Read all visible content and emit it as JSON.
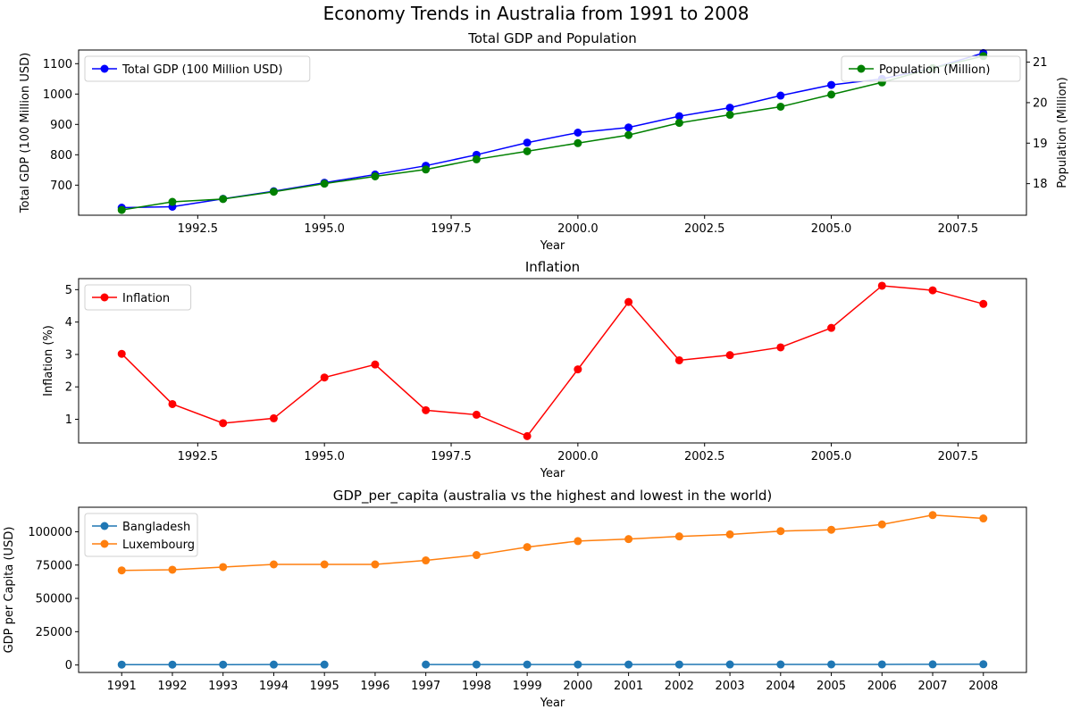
{
  "suptitle": "Economy Trends in Australia from 1991 to 2008",
  "chart_data": [
    {
      "type": "line",
      "title": "Total GDP and Population",
      "xlabel": "Year",
      "xlim": [
        1990.15,
        2008.85
      ],
      "x_ticks": [
        "1992.5",
        "1995.0",
        "1997.5",
        "2000.0",
        "2002.5",
        "2005.0",
        "2007.5"
      ],
      "x_tick_values": [
        1992.5,
        1995.0,
        1997.5,
        2000.0,
        2002.5,
        2005.0,
        2007.5
      ],
      "x": [
        1991,
        1992,
        1993,
        1994,
        1995,
        1996,
        1997,
        1998,
        1999,
        2000,
        2001,
        2002,
        2003,
        2004,
        2005,
        2006,
        2007,
        2008
      ],
      "left_axis": {
        "label": "Total GDP (100 Million USD)",
        "color": "#0000ff",
        "ylim": [
          601,
          1145
        ],
        "ticks": [
          700,
          800,
          900,
          1000,
          1100
        ],
        "tick_labels": [
          "700",
          "800",
          "900",
          "1000",
          "1100"
        ]
      },
      "right_axis": {
        "label": "Population (Million)",
        "color": "#008000",
        "ylim": [
          17.22,
          21.3
        ],
        "ticks": [
          18,
          19,
          20,
          21
        ],
        "tick_labels": [
          "18",
          "19",
          "20",
          "21"
        ]
      },
      "legend_left": "upper-left",
      "legend_right": "upper-right",
      "series": [
        {
          "name": "Total GDP (100 Million USD)",
          "color": "#0000ff",
          "axis": "left",
          "values": [
            626,
            629,
            655,
            680,
            708,
            735,
            764,
            800,
            840,
            873,
            890,
            927,
            955,
            995,
            1030,
            1050,
            1085,
            1135
          ]
        },
        {
          "name": "Population (Million)",
          "color": "#008000",
          "axis": "right",
          "values": [
            17.35,
            17.55,
            17.62,
            17.8,
            18.0,
            18.18,
            18.35,
            18.6,
            18.8,
            19.0,
            19.2,
            19.5,
            19.7,
            19.9,
            20.2,
            20.5,
            20.85,
            21.15
          ]
        }
      ]
    },
    {
      "type": "line",
      "title": "Inflation",
      "xlabel": "Year",
      "ylabel": "Inflation (%)",
      "ylabel_color": "#ff0000",
      "xlim": [
        1990.15,
        2008.85
      ],
      "ylim": [
        0.27,
        5.34
      ],
      "x_ticks": [
        "1992.5",
        "1995.0",
        "1997.5",
        "2000.0",
        "2002.5",
        "2005.0",
        "2007.5"
      ],
      "x_tick_values": [
        1992.5,
        1995.0,
        1997.5,
        2000.0,
        2002.5,
        2005.0,
        2007.5
      ],
      "y_ticks": [
        1,
        2,
        3,
        4,
        5
      ],
      "y_tick_labels": [
        "1",
        "2",
        "3",
        "4",
        "5"
      ],
      "legend": "upper-left",
      "x": [
        1991,
        1992,
        1993,
        1994,
        1995,
        1996,
        1997,
        1998,
        1999,
        2000,
        2001,
        2002,
        2003,
        2004,
        2005,
        2006,
        2007,
        2008
      ],
      "series": [
        {
          "name": "Inflation",
          "color": "#ff0000",
          "values": [
            3.02,
            1.47,
            0.88,
            1.03,
            2.29,
            2.69,
            1.28,
            1.14,
            0.48,
            2.54,
            4.62,
            2.82,
            2.98,
            3.22,
            3.82,
            5.12,
            4.98,
            4.56
          ]
        }
      ]
    },
    {
      "type": "line",
      "title": "GDP_per_capita (australia vs the highest and lowest in the world)",
      "xlabel": "Year",
      "ylabel": "GDP per Capita (USD)",
      "xlim": [
        1990.15,
        2008.85
      ],
      "ylim": [
        -5600,
        118400
      ],
      "x_ticks": [
        "1991",
        "1992",
        "1993",
        "1994",
        "1995",
        "1996",
        "1997",
        "1998",
        "1999",
        "2000",
        "2001",
        "2002",
        "2003",
        "2004",
        "2005",
        "2006",
        "2007",
        "2008"
      ],
      "x_tick_values": [
        1991,
        1992,
        1993,
        1994,
        1995,
        1996,
        1997,
        1998,
        1999,
        2000,
        2001,
        2002,
        2003,
        2004,
        2005,
        2006,
        2007,
        2008
      ],
      "y_ticks": [
        0,
        25000,
        50000,
        75000,
        100000
      ],
      "y_tick_labels": [
        "0",
        "25000",
        "50000",
        "75000",
        "100000"
      ],
      "legend": "upper-left",
      "x": [
        1991,
        1992,
        1993,
        1994,
        1995,
        1996,
        1997,
        1998,
        1999,
        2000,
        2001,
        2002,
        2003,
        2004,
        2005,
        2006,
        2007,
        2008
      ],
      "series": [
        {
          "name": "Bangladesh",
          "color": "#1f77b4",
          "values": [
            300,
            300,
            300,
            320,
            320,
            null,
            350,
            360,
            370,
            380,
            380,
            390,
            400,
            420,
            440,
            460,
            500,
            560
          ]
        },
        {
          "name": "Luxembourg",
          "color": "#ff7f0e",
          "values": [
            71000,
            71500,
            73500,
            75500,
            75500,
            75500,
            78500,
            82500,
            88500,
            93000,
            94500,
            96500,
            98000,
            100500,
            101500,
            105500,
            112500,
            110000
          ]
        }
      ]
    }
  ]
}
